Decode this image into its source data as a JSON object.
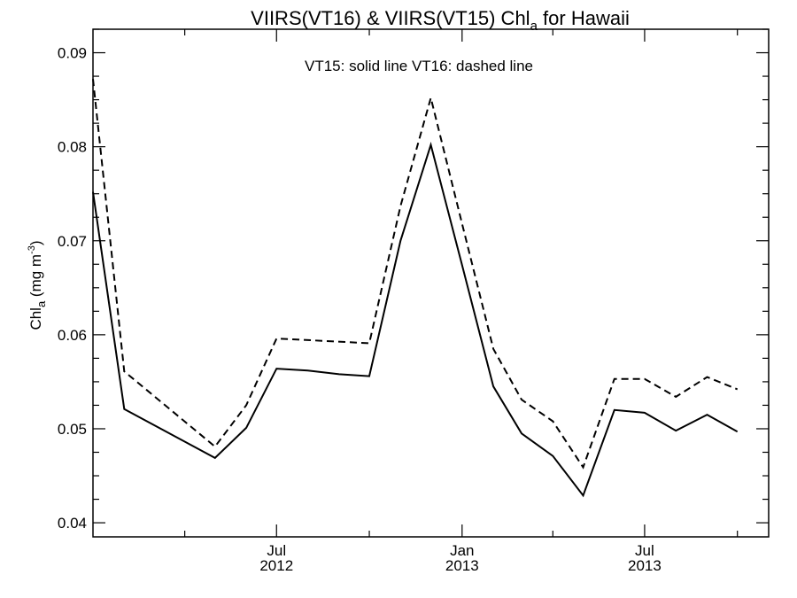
{
  "chart_data": {
    "type": "line",
    "title_pre": "VIIRS(VT16) & VIIRS(VT15)  Chl",
    "title_sub": "a",
    "title_post": " for Hawaii",
    "ylabel_pre": "Chl",
    "ylabel_sub": "a",
    "ylabel_mid": " (mg m",
    "ylabel_sup": "-3",
    "ylabel_post": ")",
    "annotation": "VT15: solid line   VT16: dashed line",
    "xlim": [
      "2012-01-01",
      "2013-11-01"
    ],
    "ylim": [
      0.0385,
      0.0925
    ],
    "yticks": [
      0.04,
      0.05,
      0.06,
      0.07,
      0.08,
      0.09
    ],
    "ytick_labels": [
      "0.04",
      "0.05",
      "0.06",
      "0.07",
      "0.08",
      "0.09"
    ],
    "y_minor_step": 0.0025,
    "x_major_ticks": [
      {
        "date": "2012-07-01",
        "month": "Jul",
        "year": "2012"
      },
      {
        "date": "2013-01-01",
        "month": "Jan",
        "year": "2013"
      },
      {
        "date": "2013-07-01",
        "month": "Jul",
        "year": "2013"
      }
    ],
    "x_minor_ticks": [
      "2012-04-01",
      "2012-10-01",
      "2013-04-01",
      "2013-10-01"
    ],
    "grid": false,
    "series": [
      {
        "style": "solid",
        "points": [
          [
            "2012-01-01",
            0.0752
          ],
          [
            "2012-02-01",
            0.0521
          ],
          [
            "2012-05-01",
            0.0469
          ],
          [
            "2012-06-01",
            0.0501
          ],
          [
            "2012-07-01",
            0.0564
          ],
          [
            "2012-08-01",
            0.0562
          ],
          [
            "2012-09-01",
            0.0558
          ],
          [
            "2012-10-01",
            0.0556
          ],
          [
            "2012-11-01",
            0.07
          ],
          [
            "2012-12-01",
            0.0802
          ],
          [
            "2013-01-01",
            0.0674
          ],
          [
            "2013-02-01",
            0.0545
          ],
          [
            "2013-03-01",
            0.0495
          ],
          [
            "2013-04-01",
            0.0471
          ],
          [
            "2013-05-01",
            0.0429
          ],
          [
            "2013-06-01",
            0.052
          ],
          [
            "2013-07-01",
            0.0517
          ],
          [
            "2013-08-01",
            0.0498
          ],
          [
            "2013-09-01",
            0.0515
          ],
          [
            "2013-10-01",
            0.0497
          ]
        ]
      },
      {
        "style": "dashed",
        "points": [
          [
            "2012-01-01",
            0.0872
          ],
          [
            "2012-02-01",
            0.0561
          ],
          [
            "2012-05-01",
            0.0481
          ],
          [
            "2012-06-01",
            0.0525
          ],
          [
            "2012-07-01",
            0.0596
          ],
          [
            "2012-10-01",
            0.0591
          ],
          [
            "2012-11-01",
            0.0737
          ],
          [
            "2012-12-01",
            0.0852
          ],
          [
            "2013-01-01",
            0.0718
          ],
          [
            "2013-02-01",
            0.0585
          ],
          [
            "2013-03-01",
            0.0531
          ],
          [
            "2013-04-01",
            0.0508
          ],
          [
            "2013-05-01",
            0.0459
          ],
          [
            "2013-06-01",
            0.0553
          ],
          [
            "2013-07-01",
            0.0553
          ],
          [
            "2013-08-01",
            0.0534
          ],
          [
            "2013-09-01",
            0.0555
          ],
          [
            "2013-10-01",
            0.0542
          ]
        ]
      }
    ]
  }
}
